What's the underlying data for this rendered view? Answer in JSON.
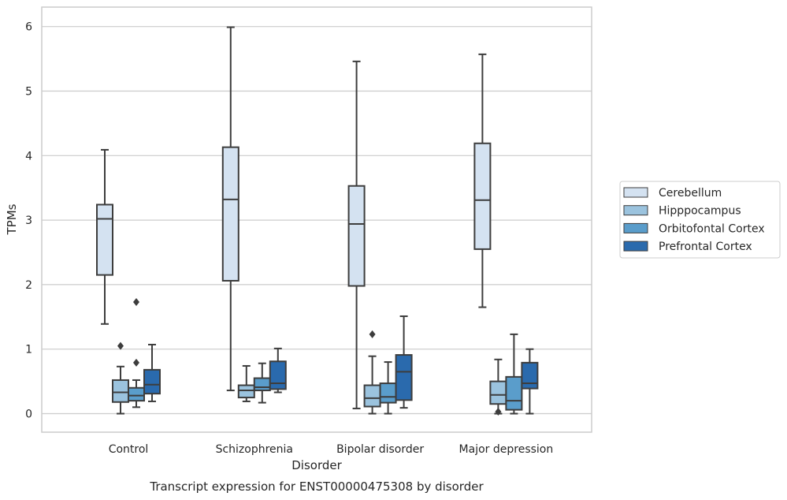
{
  "chart_data": {
    "type": "boxplot",
    "title": "Transcript expression for ENST00000475308 by disorder",
    "xlabel": "Disorder",
    "ylabel": "TPMs",
    "ylim": [
      -0.28,
      6.3
    ],
    "yticks": [
      0,
      1,
      2,
      3,
      4,
      5,
      6
    ],
    "grid": "horizontal",
    "legend_position": "right",
    "categories": [
      "Control",
      "Schizophrenia",
      "Bipolar disorder",
      "Major depression"
    ],
    "series": [
      {
        "name": "Cerebellum",
        "color": "#d4e2f1",
        "boxes": [
          {
            "whislo": 1.39,
            "q1": 2.15,
            "med": 3.02,
            "q3": 3.24,
            "whishi": 4.09,
            "fliers": []
          },
          {
            "whislo": 0.36,
            "q1": 2.06,
            "med": 3.32,
            "q3": 4.13,
            "whishi": 5.99,
            "fliers": []
          },
          {
            "whislo": 0.08,
            "q1": 1.98,
            "med": 2.94,
            "q3": 3.53,
            "whishi": 5.46,
            "fliers": []
          },
          {
            "whislo": 1.65,
            "q1": 2.55,
            "med": 3.31,
            "q3": 4.19,
            "whishi": 5.57,
            "fliers": []
          }
        ]
      },
      {
        "name": "Hipppocampus",
        "color": "#9bc3de",
        "boxes": [
          {
            "whislo": 0.0,
            "q1": 0.18,
            "med": 0.33,
            "q3": 0.52,
            "whishi": 0.73,
            "fliers": [
              1.05
            ]
          },
          {
            "whislo": 0.19,
            "q1": 0.25,
            "med": 0.36,
            "q3": 0.44,
            "whishi": 0.74,
            "fliers": []
          },
          {
            "whislo": 0.0,
            "q1": 0.11,
            "med": 0.24,
            "q3": 0.44,
            "whishi": 0.89,
            "fliers": [
              1.23
            ]
          },
          {
            "whislo": 0.0,
            "q1": 0.15,
            "med": 0.29,
            "q3": 0.5,
            "whishi": 0.84,
            "fliers": [
              0.03
            ]
          }
        ]
      },
      {
        "name": "Orbitofontal Cortex",
        "color": "#5a9dcb",
        "boxes": [
          {
            "whislo": 0.1,
            "q1": 0.2,
            "med": 0.28,
            "q3": 0.4,
            "whishi": 0.52,
            "fliers": [
              0.79,
              1.73
            ]
          },
          {
            "whislo": 0.17,
            "q1": 0.36,
            "med": 0.41,
            "q3": 0.55,
            "whishi": 0.78,
            "fliers": []
          },
          {
            "whislo": 0.0,
            "q1": 0.17,
            "med": 0.26,
            "q3": 0.47,
            "whishi": 0.8,
            "fliers": []
          },
          {
            "whislo": 0.0,
            "q1": 0.06,
            "med": 0.2,
            "q3": 0.57,
            "whishi": 1.23,
            "fliers": []
          }
        ]
      },
      {
        "name": "Prefrontal Cortex",
        "color": "#2a6aad",
        "boxes": [
          {
            "whislo": 0.19,
            "q1": 0.31,
            "med": 0.45,
            "q3": 0.68,
            "whishi": 1.07,
            "fliers": []
          },
          {
            "whislo": 0.33,
            "q1": 0.38,
            "med": 0.47,
            "q3": 0.81,
            "whishi": 1.01,
            "fliers": []
          },
          {
            "whislo": 0.09,
            "q1": 0.21,
            "med": 0.65,
            "q3": 0.91,
            "whishi": 1.51,
            "fliers": []
          },
          {
            "whislo": 0.0,
            "q1": 0.39,
            "med": 0.47,
            "q3": 0.79,
            "whishi": 1.0,
            "fliers": []
          }
        ]
      }
    ]
  }
}
